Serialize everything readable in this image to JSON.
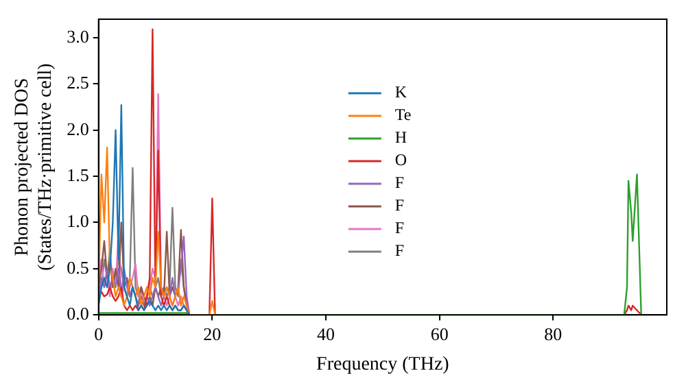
{
  "chart_data": {
    "type": "line",
    "xlabel": "Frequency (THz)",
    "ylabel": "Phonon projected DOS\n(States/THz·primitive cell)",
    "x": [
      0,
      0.5,
      1,
      1.5,
      2,
      2.5,
      3,
      3.5,
      4,
      4.5,
      5,
      5.5,
      6,
      6.5,
      7,
      7.5,
      8,
      8.5,
      9,
      9.5,
      10,
      10.5,
      11,
      11.5,
      12,
      12.5,
      13,
      13.5,
      14,
      14.5,
      15,
      15.5,
      16,
      19.5,
      20,
      20.5,
      92.5,
      93,
      93.25,
      93.75,
      94,
      94.75,
      95.5
    ],
    "xlim": [
      0,
      100
    ],
    "xticks": [
      0,
      20,
      40,
      60,
      80
    ],
    "ylim": [
      0,
      3.2
    ],
    "yticks": [
      {
        "value": 0,
        "label": "0.0"
      },
      {
        "value": 0.5,
        "label": "0.5"
      },
      {
        "value": 1,
        "label": "1.0"
      },
      {
        "value": 1.5,
        "label": "1.5"
      },
      {
        "value": 2,
        "label": "2.0"
      },
      {
        "value": 2.5,
        "label": "2.5"
      },
      {
        "value": 3,
        "label": "3.0"
      }
    ],
    "grid": false,
    "legend": "center",
    "marker": "none",
    "line_style": "solid",
    "series": [
      {
        "name": "K",
        "color": "#1f77b4",
        "values": [
          0.1,
          0.3,
          0.4,
          0.3,
          0.5,
          1.0,
          2.0,
          0.6,
          2.27,
          0.3,
          0.2,
          0.1,
          0.3,
          0.2,
          0.05,
          0.1,
          0.05,
          0.1,
          0.15,
          0.1,
          0.05,
          0.1,
          0.05,
          0.1,
          0.05,
          0.1,
          0.05,
          0.1,
          0.05,
          0.05,
          0.1,
          0.05,
          0,
          null,
          null,
          null,
          null,
          null,
          null,
          null,
          null,
          null,
          null
        ]
      },
      {
        "name": "Te",
        "color": "#ff7f0e",
        "values": [
          0.3,
          1.52,
          1.0,
          1.81,
          0.5,
          0.4,
          0.2,
          0.3,
          0.2,
          0.1,
          0.2,
          0.4,
          0.3,
          0.2,
          0.3,
          0.1,
          0.2,
          0.3,
          0.2,
          0.4,
          0.3,
          0.9,
          0.3,
          0.2,
          0.3,
          0.2,
          0.1,
          0.2,
          0.3,
          0.1,
          0.2,
          0.1,
          0,
          0,
          0.15,
          0,
          null,
          null,
          null,
          null,
          null,
          null,
          null
        ]
      },
      {
        "name": "H",
        "color": "#2ca02c",
        "values": [
          0.02,
          0.02,
          0.02,
          0.02,
          0.02,
          0.02,
          0.02,
          0.02,
          0.02,
          0.02,
          0.02,
          0.02,
          0.02,
          0.02,
          0.02,
          0.02,
          0.02,
          0.02,
          0.02,
          0.02,
          0.02,
          0.02,
          0.02,
          0.02,
          0.02,
          0.02,
          0.02,
          0.02,
          0.02,
          0.02,
          0.02,
          0.02,
          0,
          0,
          0,
          0,
          0,
          0.3,
          1.45,
          1.1,
          0.8,
          1.52,
          0
        ]
      },
      {
        "name": "O",
        "color": "#d62728",
        "values": [
          0.2,
          0.25,
          0.2,
          0.22,
          0.3,
          0.2,
          0.15,
          0.2,
          0.3,
          0.1,
          0.05,
          0.1,
          0.05,
          0.1,
          0.05,
          0.1,
          0.05,
          0.2,
          0.4,
          3.09,
          0.3,
          1.78,
          0.2,
          0.1,
          0.2,
          0.1,
          0.05,
          0.1,
          0.05,
          0.05,
          0.1,
          0.05,
          0,
          0,
          1.26,
          0,
          0,
          0.05,
          0.1,
          0.05,
          0.1,
          0.05,
          0
        ]
      },
      {
        "name": "F",
        "color": "#9467bd",
        "values": [
          0.2,
          0.4,
          0.3,
          0.5,
          0.3,
          0.4,
          0.3,
          0.5,
          0.2,
          0.5,
          0.3,
          0.2,
          0.3,
          0.2,
          0.1,
          0.2,
          0.1,
          0.2,
          0.1,
          0.2,
          0.3,
          0.2,
          0.1,
          0.2,
          0.3,
          0.2,
          0.4,
          0.2,
          0.3,
          0.5,
          0.85,
          0.2,
          0,
          null,
          null,
          null,
          null,
          null,
          null,
          null,
          null,
          null,
          null
        ]
      },
      {
        "name": "F",
        "color": "#8c564b",
        "values": [
          0.3,
          0.5,
          0.8,
          0.4,
          0.6,
          0.3,
          0.5,
          0.3,
          1.0,
          0.3,
          0.4,
          0.2,
          0.3,
          0.2,
          0.1,
          0.3,
          0.2,
          0.1,
          0.2,
          0.1,
          0.3,
          0.2,
          0.3,
          0.2,
          0.9,
          0.2,
          0.3,
          0.2,
          0.3,
          0.92,
          0.3,
          0.1,
          0,
          null,
          null,
          null,
          null,
          null,
          null,
          null,
          null,
          null,
          null
        ]
      },
      {
        "name": "F",
        "color": "#e377c2",
        "values": [
          0.4,
          0.6,
          0.3,
          0.4,
          0.2,
          0.5,
          0.3,
          0.9,
          0.2,
          0.3,
          0.2,
          0.3,
          0.4,
          0.55,
          0.2,
          0.3,
          0.1,
          0.2,
          0.3,
          0.5,
          0.4,
          2.39,
          0.3,
          0.2,
          0.1,
          0.2,
          0.1,
          0.2,
          0.1,
          0.2,
          0.1,
          0.05,
          0,
          null,
          null,
          null,
          null,
          null,
          null,
          null,
          null,
          null,
          null
        ]
      },
      {
        "name": "F",
        "color": "#7f7f7f",
        "values": [
          0.5,
          0.3,
          0.6,
          0.4,
          0.7,
          0.3,
          0.4,
          0.6,
          0.5,
          0.3,
          0.2,
          0.4,
          1.59,
          0.3,
          0.2,
          0.3,
          0.1,
          0.2,
          0.3,
          0.2,
          0.3,
          0.4,
          0.2,
          0.3,
          0.2,
          0.3,
          1.16,
          0.3,
          0.2,
          0.6,
          0.3,
          0.1,
          0,
          null,
          null,
          null,
          null,
          null,
          null,
          null,
          null,
          null,
          null
        ]
      }
    ]
  }
}
